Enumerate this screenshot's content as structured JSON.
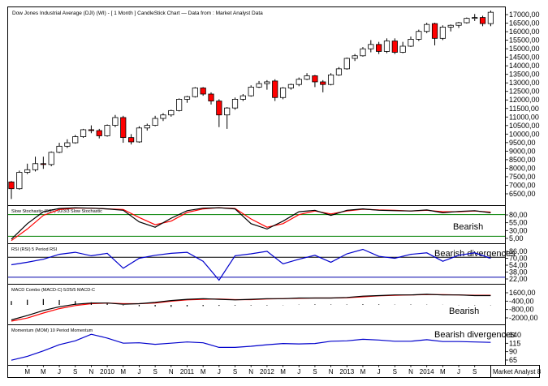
{
  "title": "Dow Jones Industrial Average (DJI) (WI) -  [ 1 Month ] CandleStick Chart — Data from : Market Analyst Data",
  "brand": "Market Analyst 8",
  "x_axis": {
    "labels": [
      "M",
      "M",
      "J",
      "S",
      "N",
      "2010",
      "M",
      "J",
      "S",
      "N",
      "2011",
      "M",
      "J",
      "S",
      "N",
      "2012",
      "M",
      "J",
      "S",
      "N",
      "2013",
      "M",
      "J",
      "S",
      "N",
      "2014",
      "M",
      "J",
      "S"
    ],
    "label_months": [
      3,
      5,
      7,
      9,
      11,
      13,
      15,
      17,
      19,
      21,
      23,
      25,
      27,
      29,
      31,
      33,
      35,
      37,
      39,
      41,
      43,
      45,
      47,
      49,
      51,
      53,
      55,
      57,
      59
    ]
  },
  "panels": {
    "price": {
      "ticks": [
        "17000,00",
        "16500,00",
        "16000,00",
        "15500,00",
        "15000,00",
        "14500,00",
        "14000,00",
        "13500,00",
        "13000,00",
        "12500,00",
        "12000,00",
        "11500,00",
        "11000,00",
        "10500,00",
        "10000,00",
        "9500,00",
        "9000,00",
        "8500,00",
        "8000,00",
        "7500,00",
        "7000,00",
        "6500,00"
      ]
    },
    "stochastic": {
      "title": "Slow Stochastic (SST) 10/3/3 Slow Stochastic",
      "ticks": [
        "80,00",
        "55,00",
        "30,00",
        "5,00"
      ],
      "annotation": "Bearish"
    },
    "rsi": {
      "title": "RSI (RSI) 5 Period RSI",
      "ticks": [
        "86,00",
        "70,00",
        "54,00",
        "38,00",
        "22,00"
      ],
      "annotation": "Bearish divergences"
    },
    "macd": {
      "title": "MACD Combo (MACD-C) 5/25/5 MACD-C",
      "ticks": [
        "1600,00",
        "-400,00",
        "-800,00",
        "-2000,00"
      ],
      "annotation": "Bearish"
    },
    "momentum": {
      "title": "Momentum (MOM) 10 Period Momentum",
      "ticks": [
        "140",
        "115",
        "90",
        "65"
      ],
      "annotation": "Bearish divergences"
    }
  },
  "colors": {
    "up": "#ffffff",
    "down": "#ff0000",
    "candle_outline": "#000000",
    "signal": "#ff0000",
    "indicator": "#000000",
    "rsi_line": "#0000cc",
    "momentum_line": "#0000cc",
    "level_green": "#008000",
    "level_blue": "#0000aa"
  },
  "chart_data": [
    {
      "type": "candlestick",
      "title": "Dow Jones Industrial Average (DJI) (WI) -  [ 1 Month ] CandleStick Chart — Data from : Market Analyst Data",
      "x_unit": "monthly, month 1 = Jan 2009",
      "ylim": [
        6300,
        17300
      ],
      "candles": [
        [
          1,
          7450,
          7500,
          6470,
          7060
        ],
        [
          2,
          7060,
          8100,
          7000,
          8000
        ],
        [
          3,
          8000,
          8500,
          7900,
          8150
        ],
        [
          4,
          8150,
          8900,
          8050,
          8500
        ],
        [
          5,
          8500,
          8900,
          8200,
          8450
        ],
        [
          6,
          8450,
          9200,
          8350,
          9150
        ],
        [
          7,
          9150,
          9700,
          9100,
          9500
        ],
        [
          8,
          9500,
          9900,
          9400,
          9700
        ],
        [
          9,
          9700,
          10150,
          9650,
          10050
        ],
        [
          10,
          10050,
          10500,
          9980,
          10450
        ],
        [
          11,
          10450,
          10700,
          10250,
          10400
        ],
        [
          12,
          10400,
          10500,
          9950,
          10100
        ],
        [
          13,
          10100,
          10750,
          10050,
          10700
        ],
        [
          14,
          10700,
          11300,
          10600,
          11150
        ],
        [
          15,
          11150,
          11250,
          9700,
          10000
        ],
        [
          16,
          10000,
          10200,
          9600,
          9750
        ],
        [
          17,
          9750,
          10650,
          9700,
          10550
        ],
        [
          18,
          10550,
          10800,
          10400,
          10700
        ],
        [
          19,
          10700,
          11250,
          10650,
          11100
        ],
        [
          20,
          11100,
          11400,
          10950,
          11300
        ],
        [
          21,
          11300,
          11600,
          11200,
          11550
        ],
        [
          22,
          11550,
          12250,
          11500,
          12200
        ],
        [
          23,
          12200,
          12400,
          12000,
          12350
        ],
        [
          24,
          12350,
          12900,
          12300,
          12850
        ],
        [
          25,
          12850,
          12900,
          12400,
          12500
        ],
        [
          26,
          12500,
          12600,
          11900,
          12100
        ],
        [
          27,
          12100,
          12200,
          10600,
          11300
        ],
        [
          28,
          11300,
          11750,
          10500,
          11700
        ],
        [
          29,
          11700,
          12300,
          11600,
          12200
        ],
        [
          30,
          12200,
          12500,
          12100,
          12400
        ],
        [
          31,
          12400,
          13000,
          12350,
          12900
        ],
        [
          32,
          12900,
          13250,
          12850,
          13100
        ],
        [
          33,
          13100,
          13300,
          12750,
          13200
        ],
        [
          34,
          13250,
          13350,
          12100,
          12300
        ],
        [
          35,
          12300,
          12900,
          12200,
          12850
        ],
        [
          36,
          12850,
          13100,
          12750,
          13050
        ],
        [
          37,
          13050,
          13450,
          12950,
          13350
        ],
        [
          38,
          13350,
          13700,
          13300,
          13550
        ],
        [
          39,
          13550,
          13600,
          12900,
          13200
        ],
        [
          40,
          13200,
          13300,
          12600,
          13050
        ],
        [
          41,
          13050,
          13700,
          13000,
          13600
        ],
        [
          42,
          13600,
          14050,
          13550,
          13950
        ],
        [
          43,
          13950,
          14600,
          13900,
          14550
        ],
        [
          44,
          14550,
          14800,
          14400,
          14700
        ],
        [
          45,
          14700,
          15200,
          14650,
          15100
        ],
        [
          46,
          15100,
          15600,
          14900,
          15350
        ],
        [
          47,
          15350,
          15500,
          14800,
          14950
        ],
        [
          48,
          14950,
          15700,
          14850,
          15550
        ],
        [
          49,
          15550,
          15700,
          14800,
          14900
        ],
        [
          50,
          14900,
          15500,
          14850,
          15250
        ],
        [
          51,
          15250,
          15800,
          15200,
          15650
        ],
        [
          52,
          15650,
          16200,
          15550,
          16100
        ],
        [
          53,
          16100,
          16600,
          16000,
          16500
        ],
        [
          54,
          16550,
          16600,
          15300,
          15700
        ],
        [
          55,
          15700,
          16450,
          15600,
          16350
        ],
        [
          56,
          16350,
          16500,
          16100,
          16450
        ],
        [
          57,
          16450,
          16650,
          16300,
          16600
        ],
        [
          58,
          16600,
          16900,
          16550,
          16850
        ],
        [
          59,
          16850,
          17100,
          16700,
          16900
        ],
        [
          60,
          16900,
          17000,
          16400,
          16550
        ],
        [
          61,
          16550,
          17300,
          16400,
          17200
        ]
      ]
    },
    {
      "type": "line",
      "title": "Slow Stochastic (SST) 10/3/3 Slow Stochastic",
      "x": [
        1,
        3,
        5,
        7,
        9,
        11,
        13,
        15,
        17,
        19,
        21,
        23,
        25,
        27,
        29,
        31,
        33,
        35,
        37,
        39,
        41,
        43,
        45,
        47,
        49,
        51,
        53,
        55,
        57,
        59,
        61
      ],
      "ylim": [
        5,
        95
      ],
      "levels": [
        80,
        20
      ],
      "series": [
        {
          "role": "indicator",
          "values": [
            12,
            55,
            88,
            97,
            99,
            98,
            96,
            92,
            60,
            45,
            70,
            91,
            98,
            99,
            96,
            55,
            40,
            62,
            88,
            92,
            78,
            92,
            96,
            92,
            91,
            90,
            93,
            85,
            89,
            91,
            85
          ]
        },
        {
          "role": "signal",
          "values": [
            8,
            40,
            78,
            94,
            98,
            98,
            96,
            94,
            72,
            52,
            62,
            86,
            96,
            99,
            97,
            68,
            45,
            55,
            80,
            90,
            82,
            90,
            95,
            93,
            92,
            90,
            92,
            88,
            88,
            90,
            87
          ]
        }
      ]
    },
    {
      "type": "line",
      "title": "RSI (RSI) 5 Period RSI",
      "x": [
        1,
        3,
        5,
        7,
        9,
        11,
        13,
        15,
        17,
        19,
        21,
        23,
        25,
        27,
        29,
        31,
        33,
        35,
        37,
        39,
        41,
        43,
        45,
        47,
        49,
        51,
        53,
        55,
        57,
        59,
        61
      ],
      "ylim": [
        20,
        90
      ],
      "levels": [
        70,
        30
      ],
      "series": [
        {
          "values": [
            55,
            60,
            66,
            76,
            80,
            73,
            78,
            48,
            68,
            74,
            78,
            80,
            62,
            24,
            73,
            77,
            82,
            57,
            66,
            74,
            60,
            77,
            86,
            72,
            68,
            76,
            79,
            62,
            74,
            79,
            68
          ]
        }
      ]
    },
    {
      "type": "line",
      "title": "MACD Combo (MACD-C) 5/25/5 MACD-C",
      "x": [
        1,
        3,
        5,
        7,
        9,
        11,
        13,
        15,
        17,
        19,
        21,
        23,
        25,
        27,
        29,
        31,
        33,
        35,
        37,
        39,
        41,
        43,
        45,
        47,
        49,
        51,
        53,
        55,
        57,
        59,
        61
      ],
      "ylim": [
        -2600,
        2600
      ],
      "series": [
        {
          "role": "macd",
          "values": [
            -2400,
            -1700,
            -900,
            -300,
            100,
            300,
            300,
            100,
            200,
            400,
            700,
            900,
            1000,
            900,
            800,
            900,
            1000,
            1000,
            1100,
            1100,
            1100,
            1200,
            1400,
            1500,
            1600,
            1600,
            1700,
            1600,
            1600,
            1500,
            1500
          ]
        },
        {
          "role": "signal",
          "values": [
            -2600,
            -2100,
            -1300,
            -600,
            -100,
            200,
            300,
            200,
            200,
            300,
            600,
            800,
            900,
            950,
            850,
            850,
            950,
            1000,
            1050,
            1100,
            1100,
            1150,
            1300,
            1450,
            1550,
            1600,
            1650,
            1650,
            1600,
            1550,
            1550
          ]
        },
        {
          "role": "histogram",
          "values": [
            300,
            400,
            450,
            380,
            300,
            200,
            100,
            -40,
            -100,
            -120,
            -150,
            -120,
            -90,
            -70,
            -50,
            -40,
            -40,
            -20,
            20,
            40,
            30,
            30,
            50,
            40,
            20,
            30,
            20,
            10,
            -20,
            -30,
            -20
          ]
        }
      ]
    },
    {
      "type": "line",
      "title": "Momentum (MOM) 10 Period Momentum",
      "x": [
        1,
        3,
        5,
        7,
        9,
        11,
        13,
        15,
        17,
        19,
        21,
        23,
        25,
        27,
        29,
        31,
        33,
        35,
        37,
        39,
        41,
        43,
        45,
        47,
        49,
        51,
        53,
        55,
        57,
        59,
        61
      ],
      "ylim": [
        60,
        150
      ],
      "series": [
        {
          "values": [
            68,
            78,
            92,
            108,
            118,
            135,
            125,
            112,
            113,
            109,
            112,
            115,
            113,
            101,
            101,
            104,
            108,
            111,
            110,
            111,
            117,
            118,
            122,
            120,
            117,
            117,
            121,
            116,
            116,
            115,
            114
          ]
        }
      ]
    }
  ]
}
